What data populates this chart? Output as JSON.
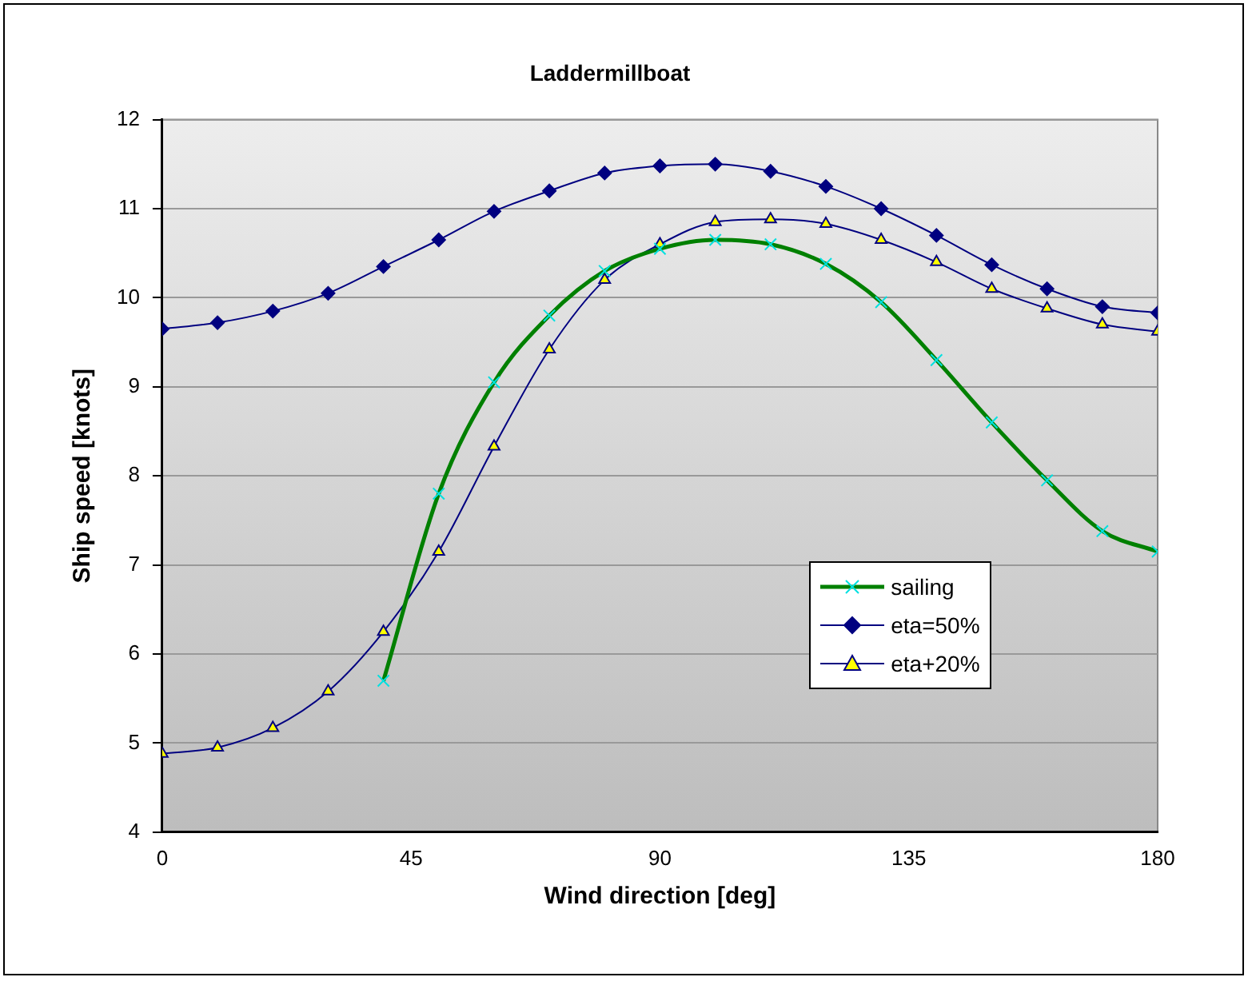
{
  "chart_data": {
    "type": "line",
    "title": "Laddermillboat",
    "xlabel": "Wind direction [deg]",
    "ylabel": "Ship speed [knots]",
    "xlim": [
      0,
      180
    ],
    "xticks": [
      0,
      45,
      90,
      135,
      180
    ],
    "ylim": [
      4,
      12
    ],
    "yticks": [
      4,
      5,
      6,
      7,
      8,
      9,
      10,
      11,
      12
    ],
    "grid": "y",
    "legend": "bottom right",
    "series": [
      {
        "name": "sailing",
        "color": "#008000",
        "marker": "cross",
        "x": [
          40,
          50,
          60,
          70,
          80,
          90,
          100,
          110,
          120,
          130,
          140,
          150,
          160,
          170,
          180
        ],
        "values": [
          5.7,
          7.8,
          9.05,
          9.8,
          10.3,
          10.55,
          10.65,
          10.6,
          10.38,
          9.95,
          9.3,
          8.6,
          7.95,
          7.38,
          7.15
        ]
      },
      {
        "name": "eta=50%",
        "color": "#000080",
        "marker": "diamond",
        "x": [
          0,
          10,
          20,
          30,
          40,
          50,
          60,
          70,
          80,
          90,
          100,
          110,
          120,
          130,
          140,
          150,
          160,
          170,
          180
        ],
        "values": [
          9.65,
          9.72,
          9.85,
          10.05,
          10.35,
          10.65,
          10.97,
          11.2,
          11.4,
          11.48,
          11.5,
          11.42,
          11.25,
          11.0,
          10.7,
          10.37,
          10.1,
          9.9,
          9.83
        ]
      },
      {
        "name": "eta+20%",
        "color": "#000080",
        "marker": "triangle",
        "x": [
          0,
          10,
          20,
          30,
          40,
          50,
          60,
          70,
          80,
          90,
          100,
          110,
          120,
          130,
          140,
          150,
          160,
          170,
          180
        ],
        "values": [
          4.88,
          4.95,
          5.17,
          5.58,
          6.25,
          7.15,
          8.33,
          9.42,
          10.2,
          10.6,
          10.85,
          10.88,
          10.83,
          10.65,
          10.4,
          10.1,
          9.88,
          9.7,
          9.62
        ]
      }
    ]
  }
}
